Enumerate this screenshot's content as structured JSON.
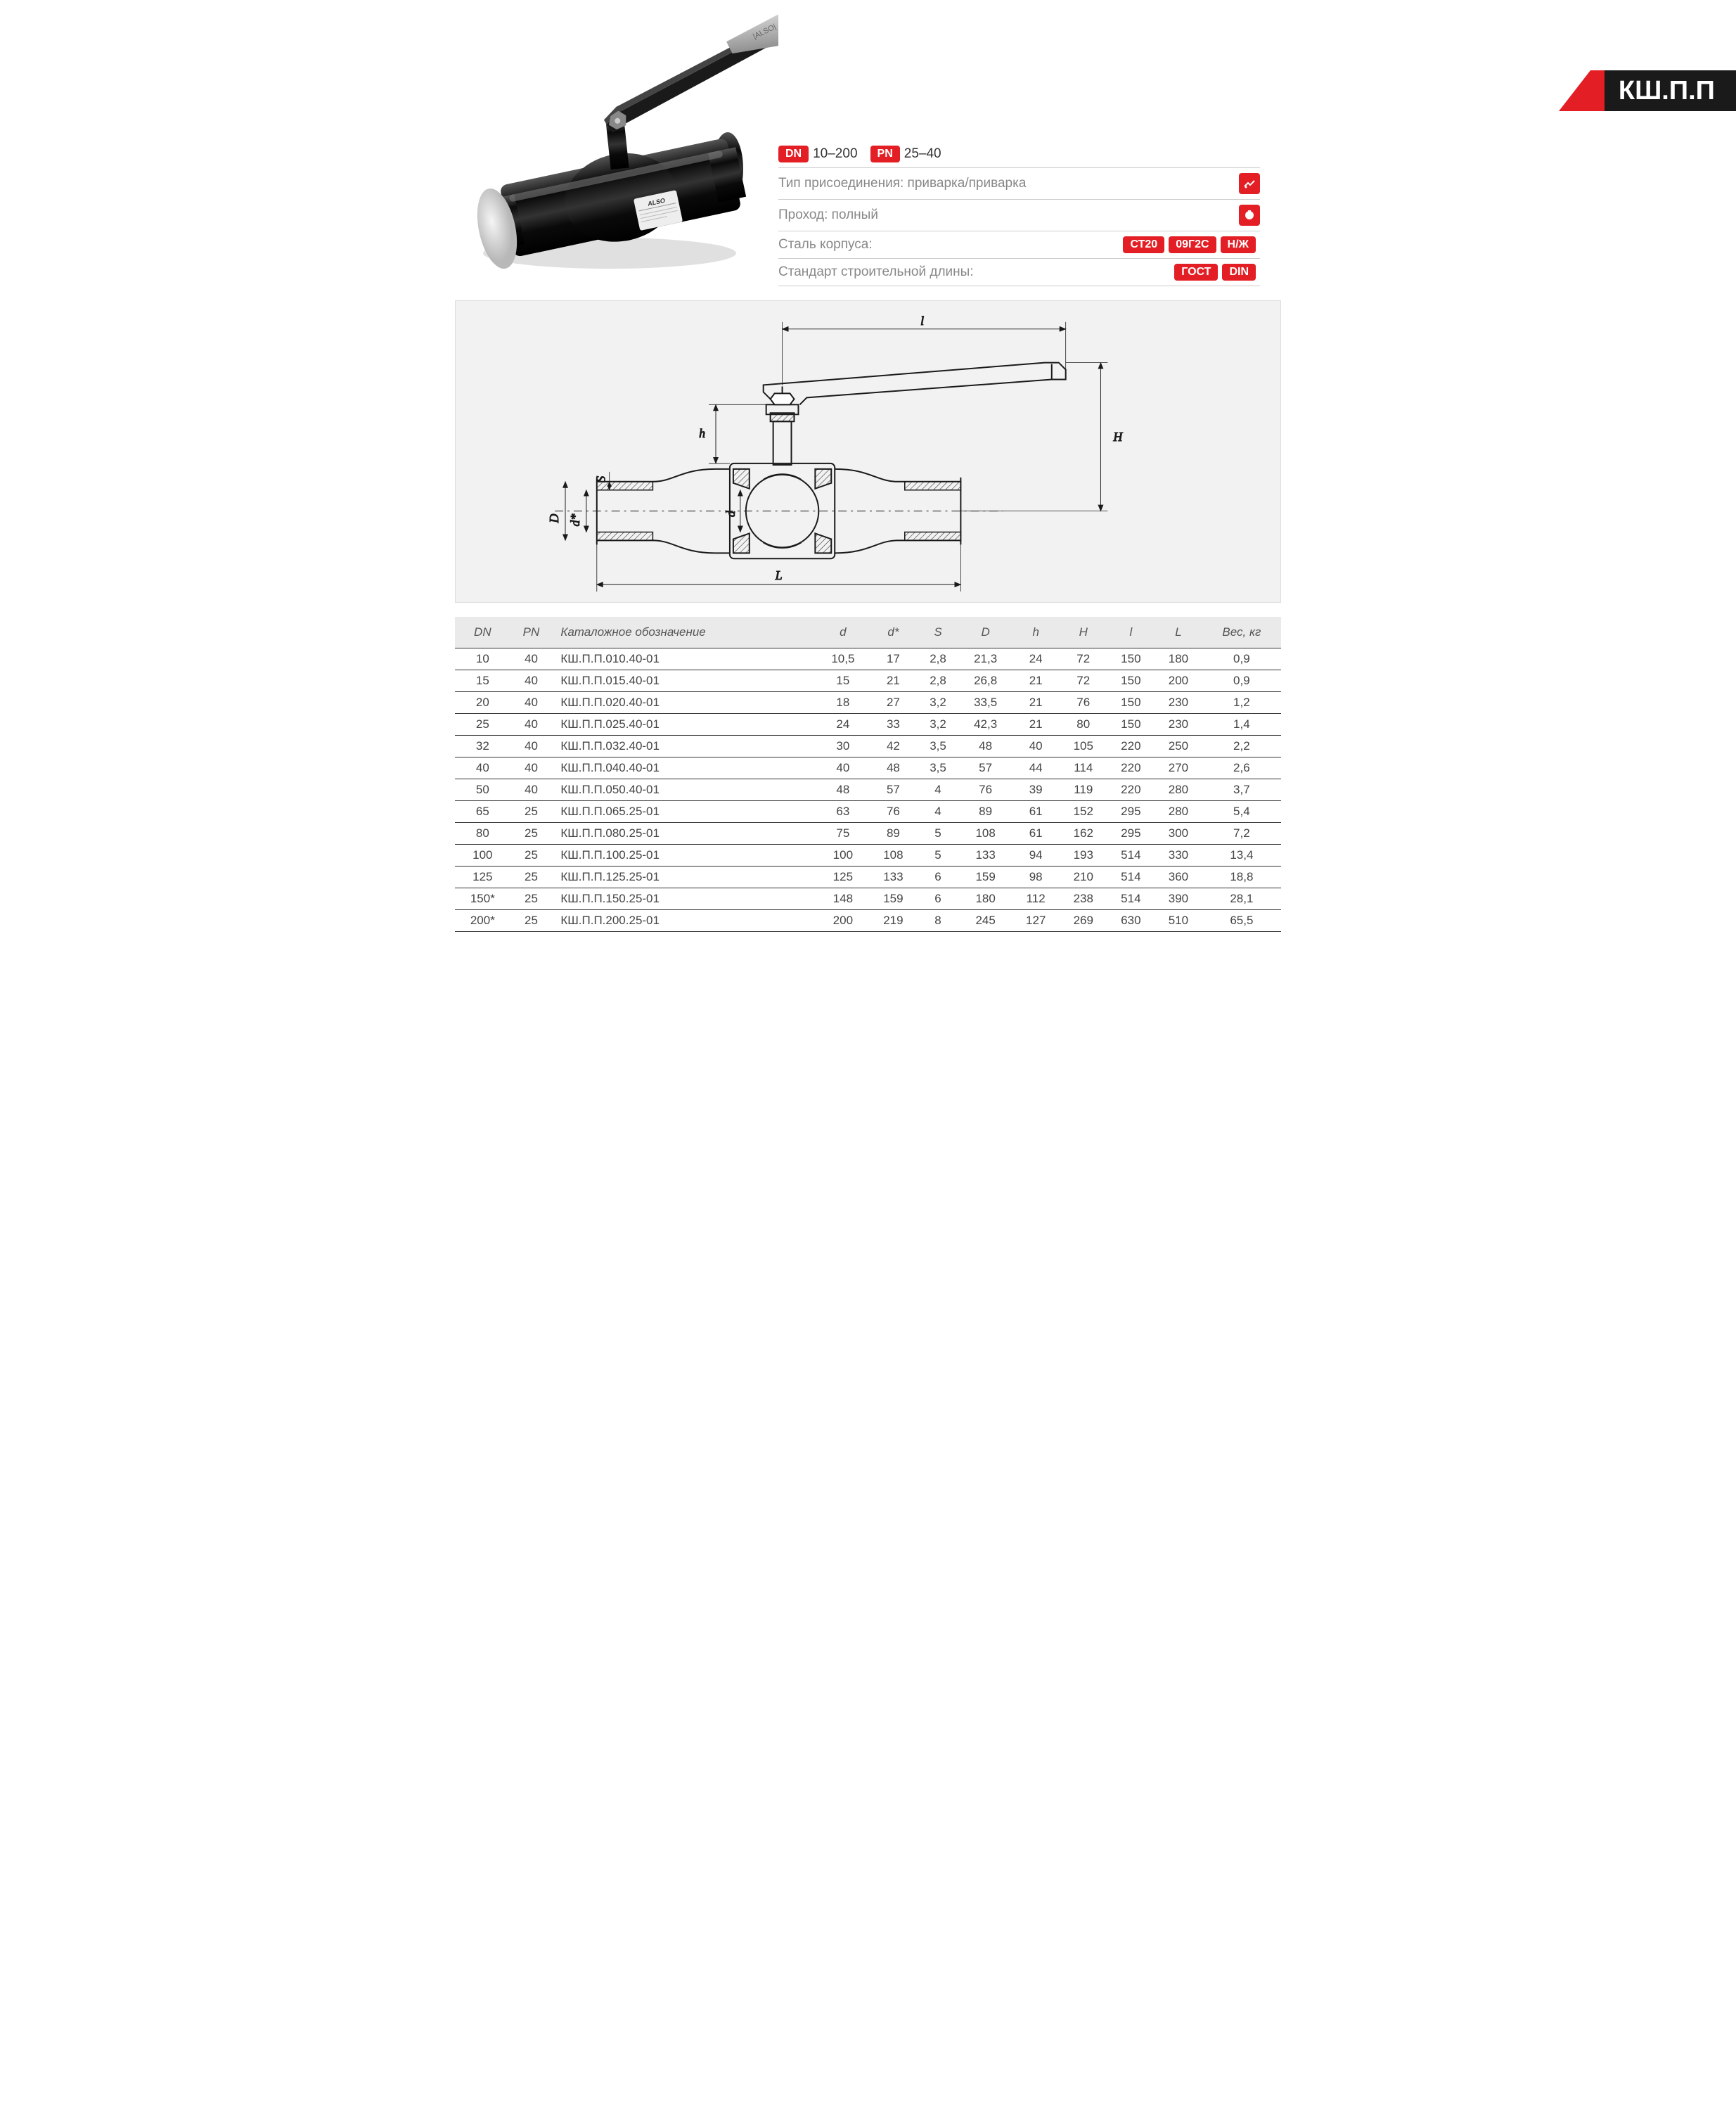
{
  "product": {
    "title": "КШ.П.П",
    "dn_badge": "DN",
    "dn_value": "10–200",
    "pn_badge": "PN",
    "pn_value": "25–40",
    "conn_type_label": "Тип присоединения: приварка/приварка",
    "passage_label": "Проход: полный",
    "body_steel_label": "Сталь корпуса:",
    "steel_badges": [
      "СТ20",
      "09Г2С",
      "Н/Ж"
    ],
    "length_std_label": "Стандарт строительной длины:",
    "length_badges": [
      "ГОСТ",
      "DIN"
    ]
  },
  "render": {
    "body_color": "#0a0a0a",
    "highlight_color": "#666",
    "end_cap_color": "#d8d8d8",
    "handle_color": "#1a1a1a",
    "handle_grip_color": "#b0b0b0",
    "label_color": "#e8e8e8"
  },
  "diagram": {
    "bg_color": "#f2f2f2",
    "line_color": "#1a1a1a",
    "hatch_color": "#333",
    "labels": {
      "L": "L",
      "l": "l",
      "H": "H",
      "h": "h",
      "D": "D",
      "d": "d",
      "dstar": "d*",
      "S": "S"
    }
  },
  "table": {
    "columns": [
      "DN",
      "PN",
      "Каталожное обозначение",
      "d",
      "d*",
      "S",
      "D",
      "h",
      "H",
      "l",
      "L",
      "Вес, кг"
    ],
    "rows": [
      [
        "10",
        "40",
        "КШ.П.П.010.40-01",
        "10,5",
        "17",
        "2,8",
        "21,3",
        "24",
        "72",
        "150",
        "180",
        "0,9"
      ],
      [
        "15",
        "40",
        "КШ.П.П.015.40-01",
        "15",
        "21",
        "2,8",
        "26,8",
        "21",
        "72",
        "150",
        "200",
        "0,9"
      ],
      [
        "20",
        "40",
        "КШ.П.П.020.40-01",
        "18",
        "27",
        "3,2",
        "33,5",
        "21",
        "76",
        "150",
        "230",
        "1,2"
      ],
      [
        "25",
        "40",
        "КШ.П.П.025.40-01",
        "24",
        "33",
        "3,2",
        "42,3",
        "21",
        "80",
        "150",
        "230",
        "1,4"
      ],
      [
        "32",
        "40",
        "КШ.П.П.032.40-01",
        "30",
        "42",
        "3,5",
        "48",
        "40",
        "105",
        "220",
        "250",
        "2,2"
      ],
      [
        "40",
        "40",
        "КШ.П.П.040.40-01",
        "40",
        "48",
        "3,5",
        "57",
        "44",
        "114",
        "220",
        "270",
        "2,6"
      ],
      [
        "50",
        "40",
        "КШ.П.П.050.40-01",
        "48",
        "57",
        "4",
        "76",
        "39",
        "119",
        "220",
        "280",
        "3,7"
      ],
      [
        "65",
        "25",
        "КШ.П.П.065.25-01",
        "63",
        "76",
        "4",
        "89",
        "61",
        "152",
        "295",
        "280",
        "5,4"
      ],
      [
        "80",
        "25",
        "КШ.П.П.080.25-01",
        "75",
        "89",
        "5",
        "108",
        "61",
        "162",
        "295",
        "300",
        "7,2"
      ],
      [
        "100",
        "25",
        "КШ.П.П.100.25-01",
        "100",
        "108",
        "5",
        "133",
        "94",
        "193",
        "514",
        "330",
        "13,4"
      ],
      [
        "125",
        "25",
        "КШ.П.П.125.25-01",
        "125",
        "133",
        "6",
        "159",
        "98",
        "210",
        "514",
        "360",
        "18,8"
      ],
      [
        "150*",
        "25",
        "КШ.П.П.150.25-01",
        "148",
        "159",
        "6",
        "180",
        "112",
        "238",
        "514",
        "390",
        "28,1"
      ],
      [
        "200*",
        "25",
        "КШ.П.П.200.25-01",
        "200",
        "219",
        "8",
        "245",
        "127",
        "269",
        "630",
        "510",
        "65,5"
      ]
    ],
    "col_align": [
      "center",
      "center",
      "left",
      "center",
      "center",
      "center",
      "center",
      "center",
      "center",
      "center",
      "center",
      "center"
    ],
    "header_bg": "#eaeaea",
    "border_color": "#333"
  }
}
